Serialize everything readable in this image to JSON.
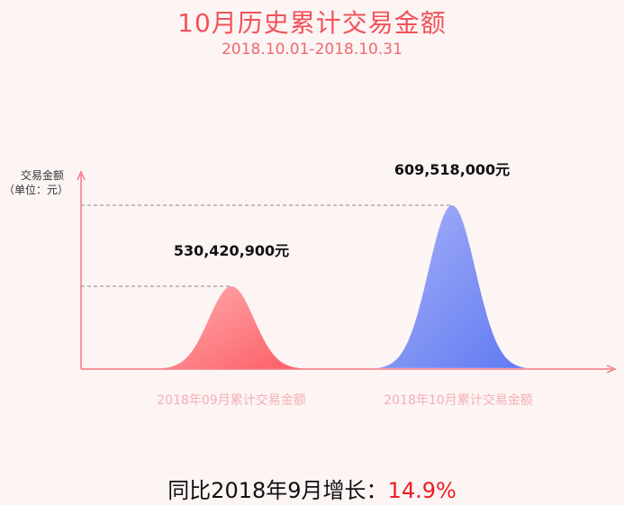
{
  "title": "10月历史累计交易金额",
  "subtitle": "2018.10.01-2018.10.31",
  "footer": {
    "label": "同比2018年9月增长：",
    "rate": "14.9%"
  },
  "colors": {
    "title": "#f0535a",
    "axis": "#f27a85",
    "sep_fill_from": "#ffadb1",
    "sep_fill_to": "#fb5d64",
    "oct_fill_from": "#a9b2f7",
    "oct_fill_to": "#5f79f2",
    "growth": "#ea1d22"
  },
  "chart_data": {
    "type": "area",
    "ylabel": "交易金额",
    "yunit": "（单位：元）",
    "series": [
      {
        "category": "2018年09月累计交易金额",
        "value": 530420900,
        "label": "530,420,900元"
      },
      {
        "category": "2018年10月累计交易金额",
        "value": 609518000,
        "label": "609,518,000元"
      }
    ],
    "growth_pct": 14.9
  }
}
